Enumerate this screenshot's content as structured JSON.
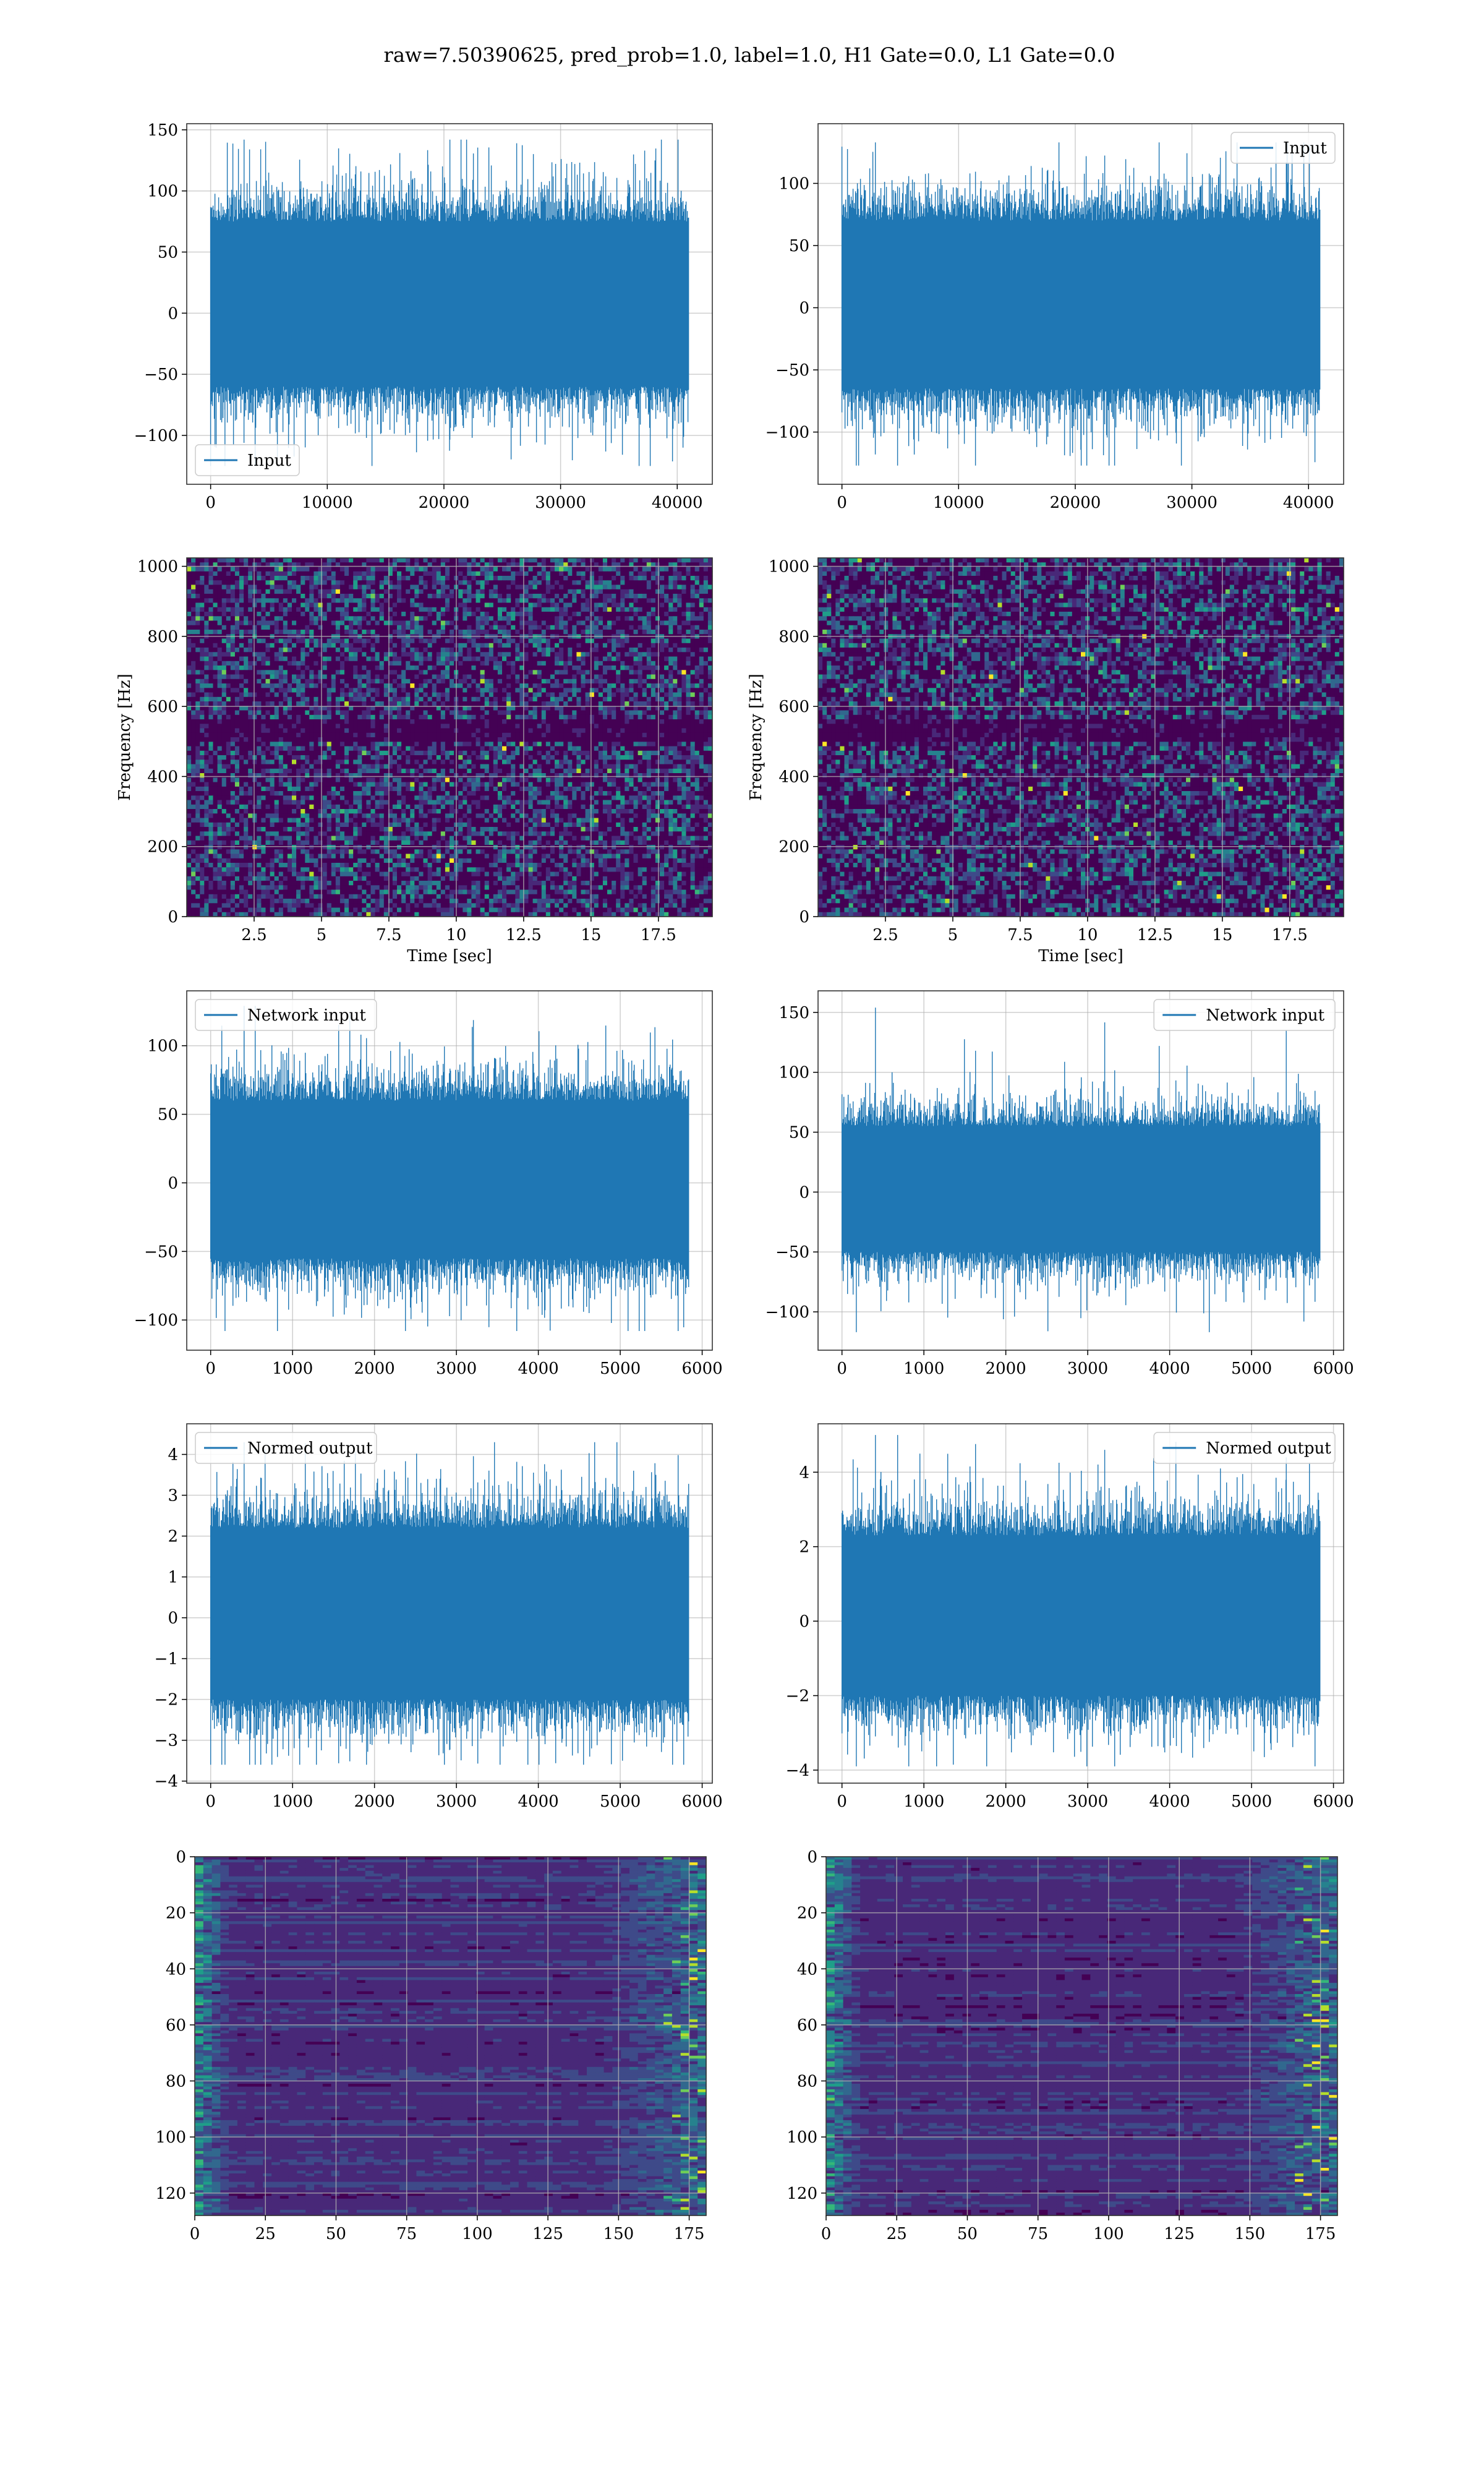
{
  "suptitle": "raw=7.50390625, pred_prob=1.0, label=1.0, H1 Gate=0.0, L1 Gate=0.0",
  "colors": {
    "line": "#1f77b4",
    "grid": "#b0b0b0",
    "viridis": [
      "#440154",
      "#482878",
      "#3e4a89",
      "#31688e",
      "#26828e",
      "#1f9e89",
      "#35b779",
      "#6ece58",
      "#b5de2b",
      "#fde725"
    ]
  },
  "chart_data": [
    {
      "type": "line",
      "id": "input-h1",
      "series": [
        {
          "name": "Input",
          "n": 40960,
          "min": -125,
          "max": 142,
          "envelope": [
            -60,
            75
          ]
        }
      ],
      "xlim": [
        -2048,
        43008
      ],
      "ylim": [
        -140,
        155
      ],
      "xticks": [
        0,
        10000,
        20000,
        30000,
        40000
      ],
      "yticks": [
        -100,
        -50,
        0,
        50,
        100,
        150
      ],
      "legend": "lower left",
      "grid": true
    },
    {
      "type": "line",
      "id": "input-l1",
      "series": [
        {
          "name": "Input",
          "n": 40960,
          "min": -127,
          "max": 133,
          "envelope": [
            -65,
            70
          ]
        }
      ],
      "xlim": [
        -2048,
        43008
      ],
      "ylim": [
        -142,
        148
      ],
      "xticks": [
        0,
        10000,
        20000,
        30000,
        40000
      ],
      "yticks": [
        -100,
        -50,
        0,
        50,
        100
      ],
      "legend": "upper right",
      "grid": true
    },
    {
      "type": "heatmap",
      "id": "spec-h1",
      "xlim": [
        0,
        19.5
      ],
      "ylim": [
        0,
        1024
      ],
      "xticks": [
        2.5,
        5.0,
        7.5,
        10.0,
        12.5,
        15.0,
        17.5
      ],
      "yticks": [
        0,
        200,
        400,
        600,
        800,
        1000
      ],
      "xlabel": "Time [sec]",
      "ylabel": "Frequency [Hz]",
      "grid": true
    },
    {
      "type": "heatmap",
      "id": "spec-l1",
      "xlim": [
        0,
        19.5
      ],
      "ylim": [
        0,
        1024
      ],
      "xticks": [
        2.5,
        5.0,
        7.5,
        10.0,
        12.5,
        15.0,
        17.5
      ],
      "yticks": [
        0,
        200,
        400,
        600,
        800,
        1000
      ],
      "xlabel": "Time [sec]",
      "ylabel": "Frequency [Hz]",
      "grid": true
    },
    {
      "type": "line",
      "id": "net-h1",
      "series": [
        {
          "name": "Network input",
          "n": 5832,
          "min": -108,
          "max": 129,
          "envelope": [
            -55,
            60
          ]
        }
      ],
      "xlim": [
        -292,
        6124
      ],
      "ylim": [
        -122,
        140
      ],
      "xticks": [
        0,
        1000,
        2000,
        3000,
        4000,
        5000,
        6000
      ],
      "yticks": [
        -100,
        -50,
        0,
        50,
        100
      ],
      "legend": "upper left",
      "grid": true
    },
    {
      "type": "line",
      "id": "net-l1",
      "series": [
        {
          "name": "Network input",
          "n": 5832,
          "min": -117,
          "max": 154,
          "envelope": [
            -50,
            55
          ]
        }
      ],
      "xlim": [
        -292,
        6124
      ],
      "ylim": [
        -132,
        168
      ],
      "xticks": [
        0,
        1000,
        2000,
        3000,
        4000,
        5000,
        6000
      ],
      "yticks": [
        -100,
        -50,
        0,
        50,
        100,
        150
      ],
      "legend": "upper right",
      "grid": true
    },
    {
      "type": "line",
      "id": "norm-h1",
      "series": [
        {
          "name": "Normed output",
          "n": 5832,
          "min": -3.6,
          "max": 4.3,
          "envelope": [
            -2.0,
            2.2
          ]
        }
      ],
      "xlim": [
        -292,
        6124
      ],
      "ylim": [
        -4.05,
        4.75
      ],
      "xticks": [
        0,
        1000,
        2000,
        3000,
        4000,
        5000,
        6000
      ],
      "yticks": [
        -4,
        -3,
        -2,
        -1,
        0,
        1,
        2,
        3,
        4
      ],
      "legend": "upper left",
      "grid": true
    },
    {
      "type": "line",
      "id": "norm-l1",
      "series": [
        {
          "name": "Normed output",
          "n": 5832,
          "min": -3.9,
          "max": 5.0,
          "envelope": [
            -2.0,
            2.3
          ]
        }
      ],
      "xlim": [
        -292,
        6124
      ],
      "ylim": [
        -4.35,
        5.3
      ],
      "xticks": [
        0,
        1000,
        2000,
        3000,
        4000,
        5000,
        6000
      ],
      "yticks": [
        -4,
        -2,
        0,
        2,
        4
      ],
      "legend": "upper right",
      "grid": true
    },
    {
      "type": "heatmap",
      "id": "feat-h1",
      "xlim": [
        0,
        181
      ],
      "ylim": [
        128,
        0
      ],
      "xticks": [
        0,
        25,
        50,
        75,
        100,
        125,
        150,
        175
      ],
      "yticks": [
        0,
        20,
        40,
        60,
        80,
        100,
        120
      ],
      "grid": true
    },
    {
      "type": "heatmap",
      "id": "feat-l1",
      "xlim": [
        0,
        181
      ],
      "ylim": [
        128,
        0
      ],
      "xticks": [
        0,
        25,
        50,
        75,
        100,
        125,
        150,
        175
      ],
      "yticks": [
        0,
        20,
        40,
        60,
        80,
        100,
        120
      ],
      "grid": true
    }
  ]
}
